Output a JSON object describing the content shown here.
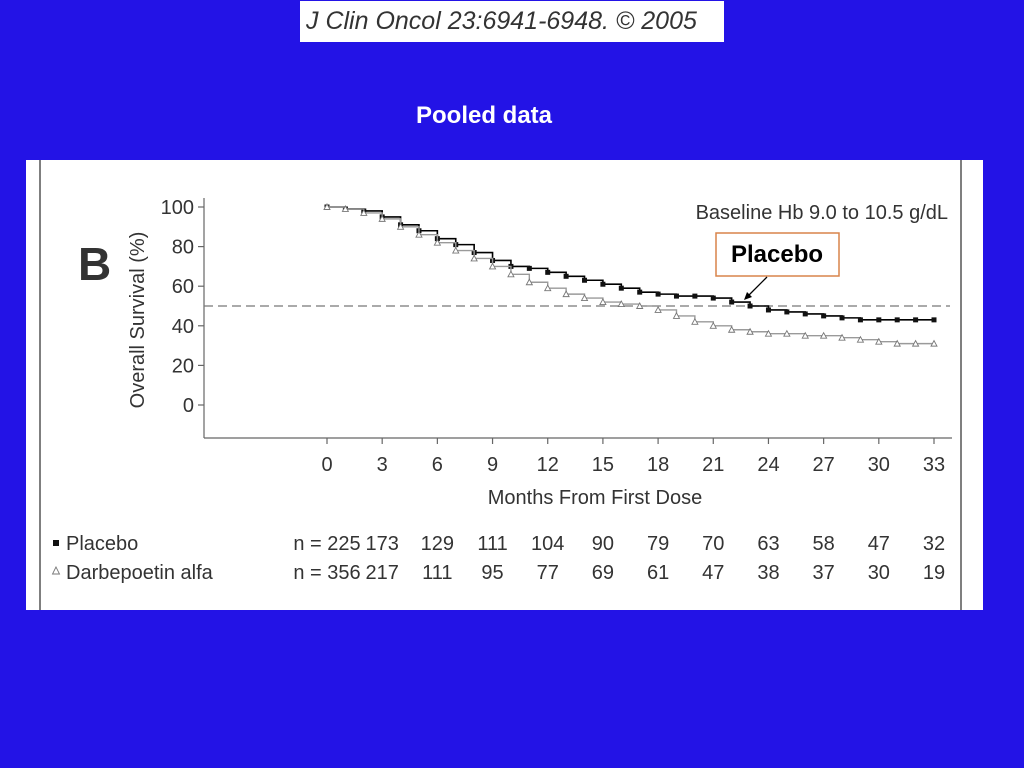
{
  "citation": "J Clin Oncol 23:6941-6948. © 2005",
  "slide_title": "Pooled data",
  "callout_label": "Placebo",
  "colors": {
    "background": "#2313e6",
    "panel": "#ffffff",
    "placebo_line": "#000000",
    "darbepoetin_line": "#9a9a9a",
    "reference_line": "#777777",
    "callout_border": "#d9844a"
  },
  "chart_data": {
    "type": "line",
    "panel_letter": "B",
    "title": "Baseline Hb 9.0 to 10.5 g/dL",
    "xlabel": "Months From First Dose",
    "ylabel": "Overall Survival (%)",
    "xlim": [
      0,
      33
    ],
    "ylim": [
      0,
      100
    ],
    "xticks": [
      0,
      3,
      6,
      9,
      12,
      15,
      18,
      21,
      24,
      27,
      30,
      33
    ],
    "yticks": [
      0,
      20,
      40,
      60,
      80,
      100
    ],
    "reference_line_y": 50,
    "grid": false,
    "series": [
      {
        "name": "Placebo",
        "marker": "square",
        "x": [
          0,
          1,
          2,
          3,
          4,
          5,
          6,
          7,
          8,
          9,
          10,
          11,
          12,
          13,
          14,
          15,
          16,
          17,
          18,
          19,
          20,
          21,
          22,
          23,
          24,
          25,
          26,
          27,
          28,
          29,
          30,
          31,
          32,
          33
        ],
        "y": [
          100,
          99,
          98,
          95,
          91,
          88,
          84,
          81,
          77,
          73,
          70,
          69,
          67,
          65,
          63,
          61,
          59,
          57,
          56,
          55,
          55,
          54,
          52,
          50,
          48,
          47,
          46,
          45,
          44,
          43,
          43,
          43,
          43,
          43
        ],
        "n_at_risk": [
          225,
          173,
          129,
          111,
          104,
          90,
          79,
          70,
          63,
          58,
          47,
          32
        ]
      },
      {
        "name": "Darbepoetin alfa",
        "marker": "triangle",
        "x": [
          0,
          1,
          2,
          3,
          4,
          5,
          6,
          7,
          8,
          9,
          10,
          11,
          12,
          13,
          14,
          15,
          16,
          17,
          18,
          19,
          20,
          21,
          22,
          23,
          24,
          25,
          26,
          27,
          28,
          29,
          30,
          31,
          32,
          33
        ],
        "y": [
          100,
          99,
          97,
          94,
          90,
          86,
          82,
          78,
          74,
          70,
          66,
          62,
          59,
          56,
          54,
          52,
          51,
          50,
          48,
          45,
          42,
          40,
          38,
          37,
          36,
          36,
          35,
          35,
          34,
          33,
          32,
          31,
          31,
          31
        ],
        "n_at_risk": [
          356,
          217,
          111,
          95,
          77,
          69,
          61,
          47,
          38,
          37,
          30,
          19
        ]
      }
    ]
  }
}
